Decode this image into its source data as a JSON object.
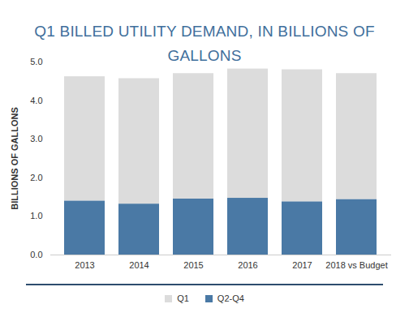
{
  "chart_data": {
    "type": "bar",
    "title": "Q1 BILLED UTILITY DEMAND, IN BILLIONS OF GALLONS",
    "y_label": "BILLIONS OF GALLONS",
    "categories": [
      "2013",
      "2014",
      "2015",
      "2016",
      "2017",
      "2018 vs Budget"
    ],
    "series": [
      {
        "name": "Q1",
        "color": "#dcdcdc",
        "values": [
          3.22,
          3.25,
          3.25,
          3.35,
          3.42,
          3.26
        ]
      },
      {
        "name": "Q2-Q4",
        "color": "#4a79a5",
        "values": [
          1.4,
          1.32,
          1.45,
          1.47,
          1.38,
          1.44
        ]
      }
    ],
    "ylim": [
      0,
      5
    ],
    "yticks": [
      0,
      1,
      2,
      3,
      4,
      5
    ],
    "stacked": true,
    "grid": false,
    "legend": "bottom"
  }
}
